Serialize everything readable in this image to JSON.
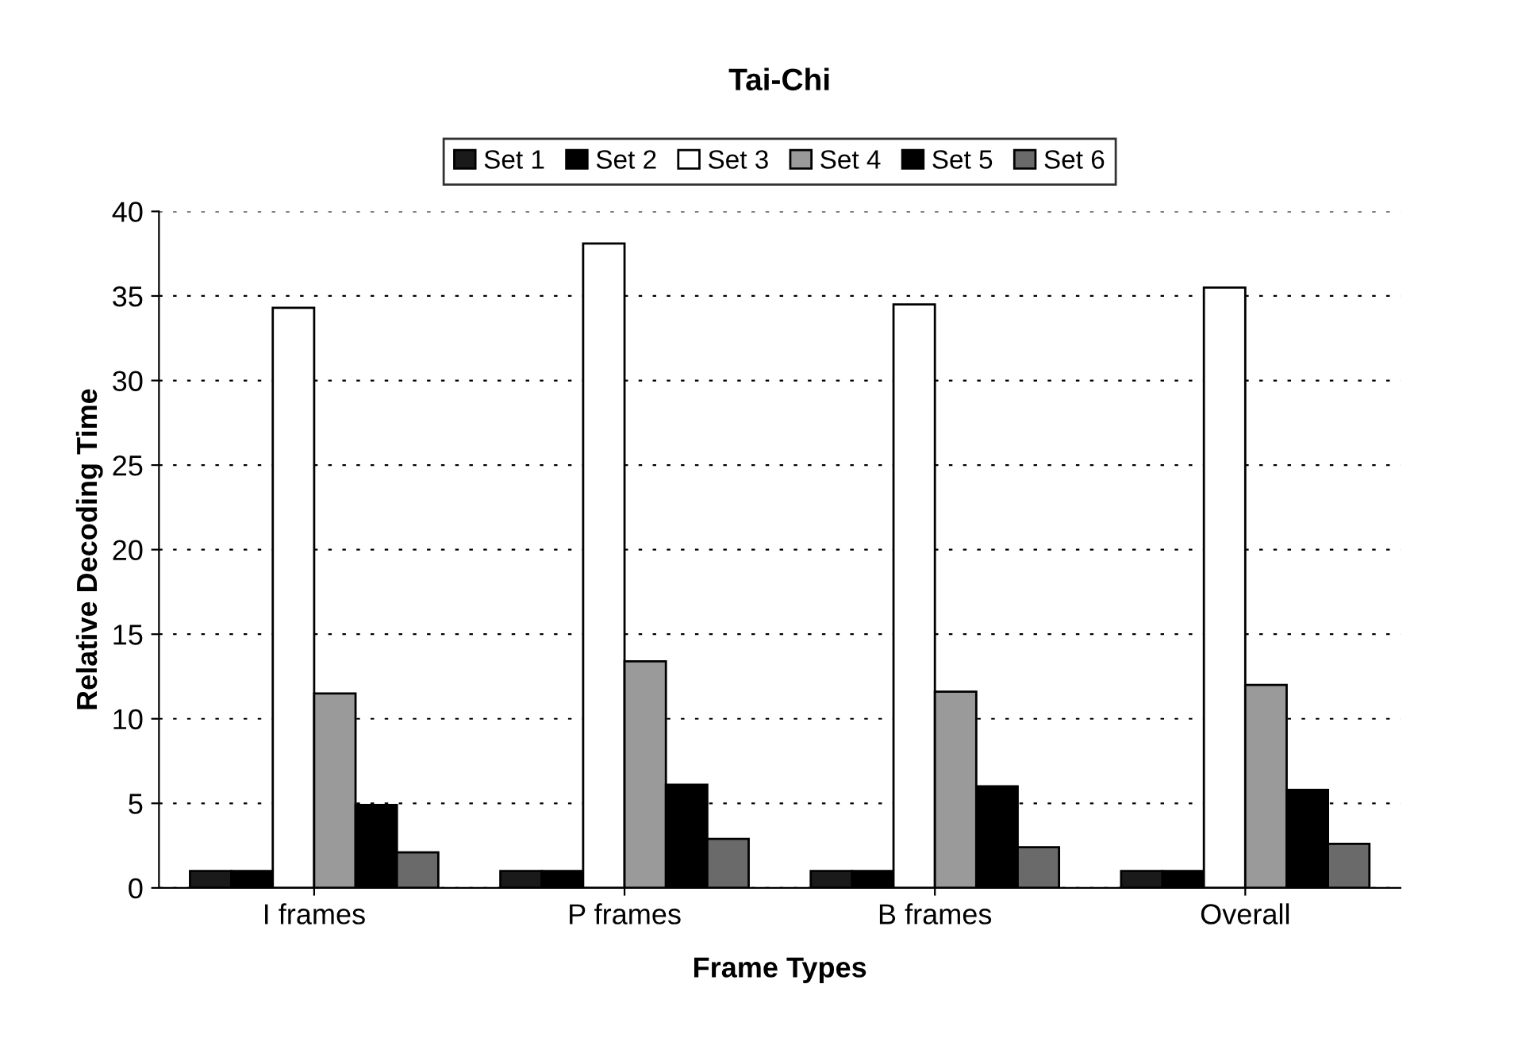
{
  "chart_data": {
    "type": "bar",
    "title": "Tai-Chi",
    "xlabel": "Frame Types",
    "ylabel": "Relative Decoding Time",
    "categories": [
      "I frames",
      "P frames",
      "B frames",
      "Overall"
    ],
    "series": [
      {
        "name": "Set 1",
        "color": "#1a1a1a",
        "values": [
          1,
          1,
          1,
          1
        ]
      },
      {
        "name": "Set 2",
        "color": "#000000",
        "values": [
          1,
          1,
          1,
          1
        ]
      },
      {
        "name": "Set 3",
        "color": "#ffffff",
        "values": [
          34.3,
          38.1,
          34.5,
          35.5
        ]
      },
      {
        "name": "Set 4",
        "color": "#9a9a9a",
        "values": [
          11.5,
          13.4,
          11.6,
          12
        ]
      },
      {
        "name": "Set 5",
        "color": "#000000",
        "values": [
          4.9,
          6.1,
          6.0,
          5.8
        ]
      },
      {
        "name": "Set 6",
        "color": "#6a6a6a",
        "values": [
          2.1,
          2.9,
          2.4,
          2.6
        ]
      }
    ],
    "ylim": [
      0,
      40
    ],
    "yticks": [
      0,
      5,
      10,
      15,
      20,
      25,
      30,
      35,
      40
    ],
    "grid": "y",
    "legend": "top"
  }
}
